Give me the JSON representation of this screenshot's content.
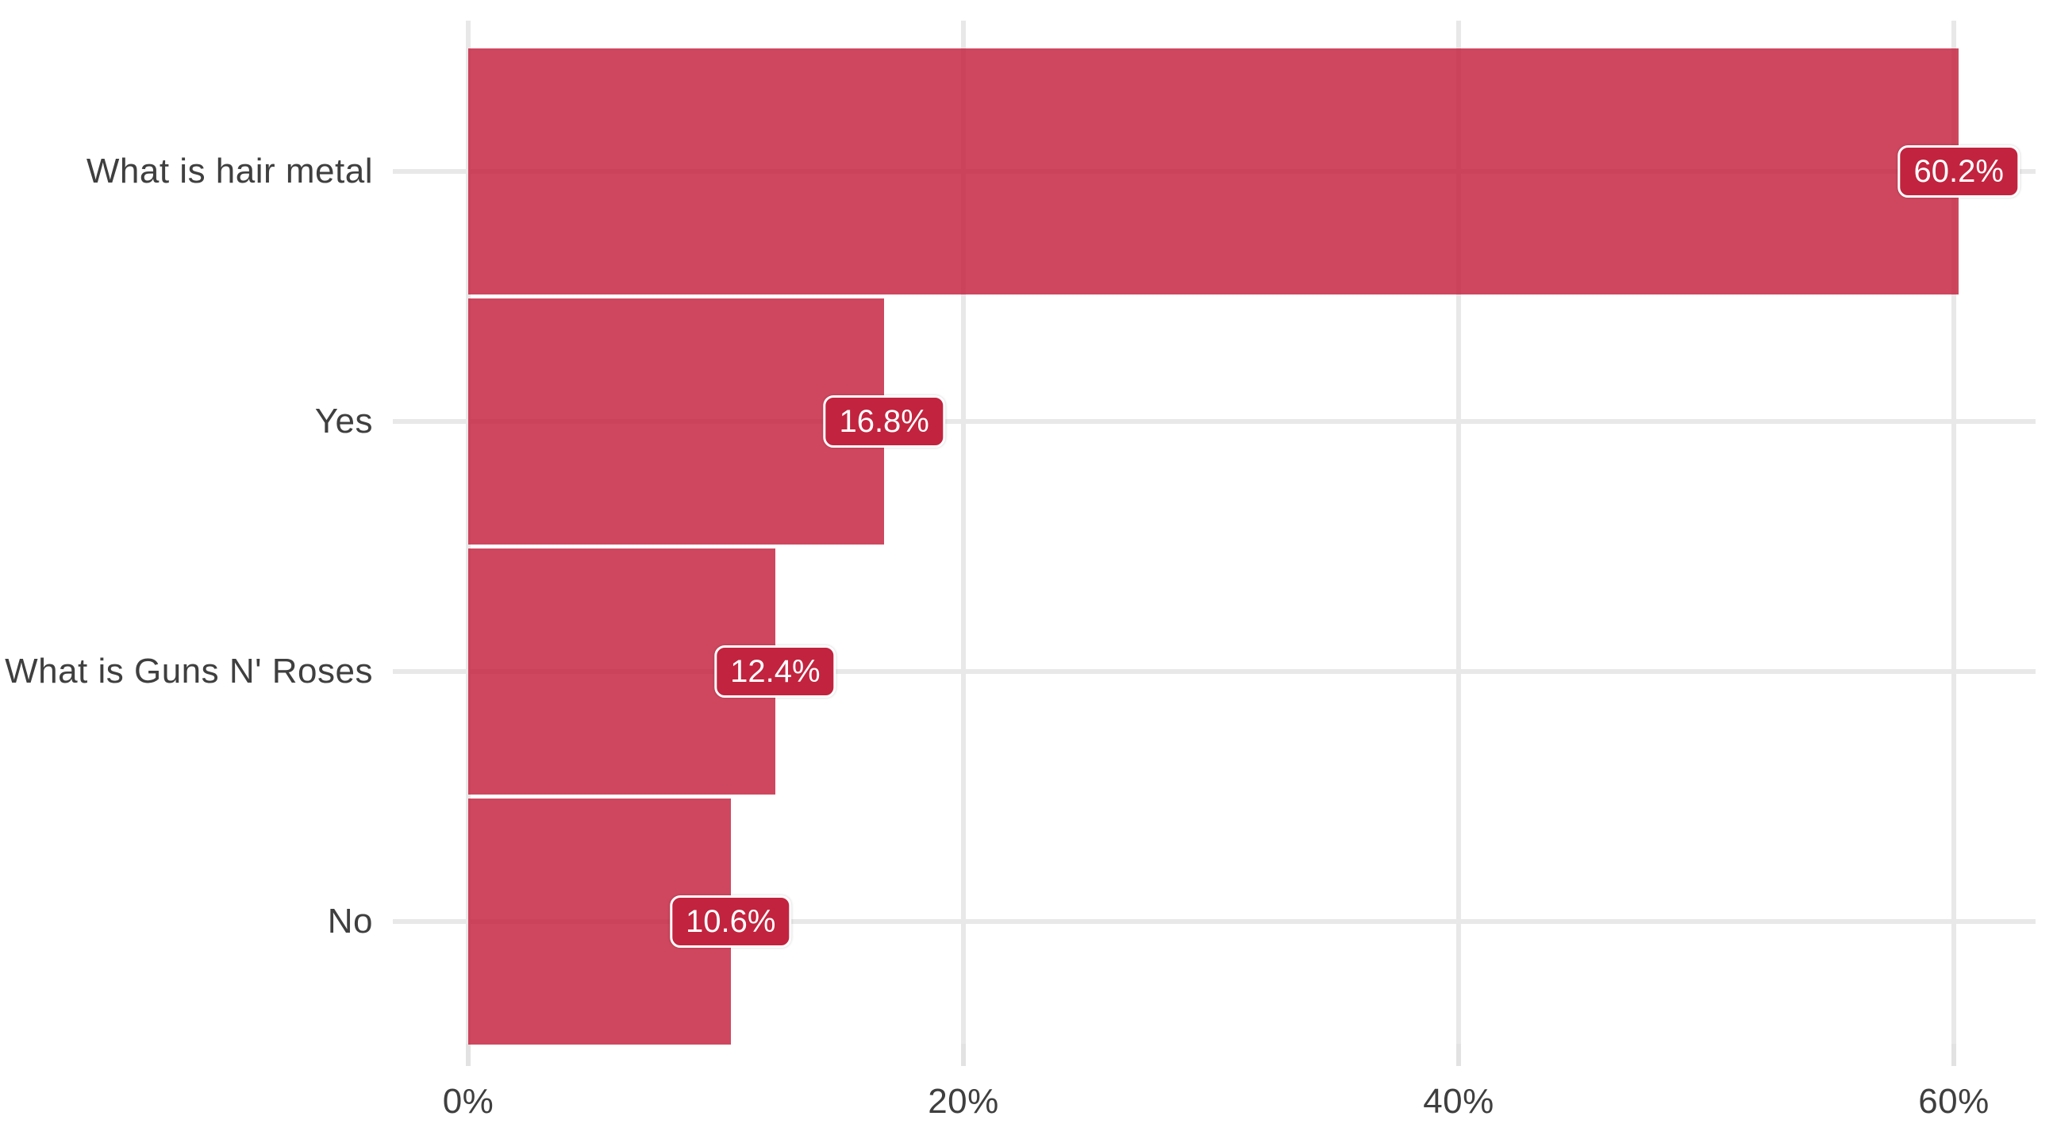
{
  "chart_data": {
    "type": "bar",
    "orientation": "horizontal",
    "title": "",
    "xlabel": "",
    "ylabel": "",
    "categories": [
      "What is hair metal",
      "Yes",
      "What is Guns N' Roses",
      "No"
    ],
    "values": [
      60.2,
      16.8,
      12.4,
      10.6
    ],
    "value_labels": [
      "60.2%",
      "16.8%",
      "12.4%",
      "10.6%"
    ],
    "x_axis": {
      "tick_values": [
        0,
        20,
        40,
        60
      ],
      "tick_labels": [
        "0%",
        "20%",
        "40%",
        "60%"
      ],
      "range": [
        0,
        63.2
      ]
    },
    "grid": "on",
    "legend": "none",
    "colors": {
      "bar_fill": "rgba(197,30,60,0.82)",
      "badge_background": "#c2233e",
      "badge_text": "#ffffff",
      "badge_border": "#ffffff",
      "gridline": "#e8e8e8",
      "tick_mark": "#e2e2e2",
      "axis_text": "#3f3f3f"
    }
  }
}
